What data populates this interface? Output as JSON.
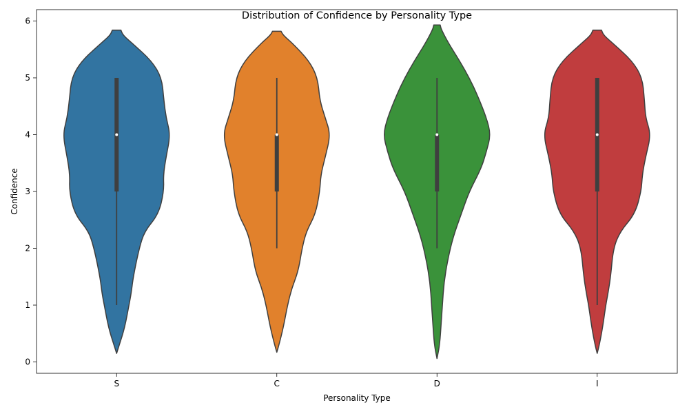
{
  "chart_data": {
    "type": "violin",
    "title": "Distribution of Confidence by Personality Type",
    "xlabel": "Personality Type",
    "ylabel": "Confidence",
    "ylim": [
      -0.2,
      6.2
    ],
    "yticks": [
      0,
      1,
      2,
      3,
      4,
      5,
      6
    ],
    "categories": [
      "S",
      "C",
      "D",
      "I"
    ],
    "colors": [
      "#3274a1",
      "#e1812c",
      "#3a923a",
      "#c03d3e"
    ],
    "grid": false,
    "series": [
      {
        "category": "S",
        "stats": {
          "min": 1,
          "q1": 3,
          "median": 4,
          "q3": 5,
          "max": 5
        },
        "density": [
          [
            0.15,
            0.0
          ],
          [
            0.3,
            0.05
          ],
          [
            0.6,
            0.15
          ],
          [
            1.0,
            0.23
          ],
          [
            1.2,
            0.27
          ],
          [
            1.5,
            0.31
          ],
          [
            2.0,
            0.42
          ],
          [
            2.3,
            0.52
          ],
          [
            2.6,
            0.78
          ],
          [
            3.0,
            0.88
          ],
          [
            3.3,
            0.87
          ],
          [
            3.6,
            0.92
          ],
          [
            4.0,
            1.0
          ],
          [
            4.3,
            0.92
          ],
          [
            4.6,
            0.88
          ],
          [
            5.0,
            0.84
          ],
          [
            5.3,
            0.65
          ],
          [
            5.6,
            0.3
          ],
          [
            5.75,
            0.12
          ],
          [
            5.84,
            0.08
          ]
        ]
      },
      {
        "category": "C",
        "stats": {
          "min": 2,
          "q1": 3,
          "median": 4,
          "q3": 4,
          "max": 5
        },
        "density": [
          [
            0.17,
            0.0
          ],
          [
            0.3,
            0.04
          ],
          [
            0.6,
            0.12
          ],
          [
            1.0,
            0.2
          ],
          [
            1.3,
            0.28
          ],
          [
            1.6,
            0.4
          ],
          [
            2.0,
            0.47
          ],
          [
            2.3,
            0.55
          ],
          [
            2.6,
            0.72
          ],
          [
            3.0,
            0.8
          ],
          [
            3.3,
            0.82
          ],
          [
            3.6,
            0.9
          ],
          [
            4.0,
            1.0
          ],
          [
            4.3,
            0.9
          ],
          [
            4.6,
            0.8
          ],
          [
            5.0,
            0.76
          ],
          [
            5.3,
            0.6
          ],
          [
            5.6,
            0.3
          ],
          [
            5.75,
            0.12
          ],
          [
            5.82,
            0.08
          ]
        ]
      },
      {
        "category": "D",
        "stats": {
          "min": 2,
          "q1": 3,
          "median": 4,
          "q3": 4,
          "max": 5
        },
        "density": [
          [
            0.06,
            0.0
          ],
          [
            0.3,
            0.05
          ],
          [
            0.7,
            0.08
          ],
          [
            1.0,
            0.1
          ],
          [
            1.4,
            0.13
          ],
          [
            1.8,
            0.2
          ],
          [
            2.2,
            0.3
          ],
          [
            2.6,
            0.45
          ],
          [
            3.0,
            0.6
          ],
          [
            3.4,
            0.82
          ],
          [
            3.7,
            0.92
          ],
          [
            4.0,
            1.0
          ],
          [
            4.3,
            0.92
          ],
          [
            4.7,
            0.75
          ],
          [
            5.0,
            0.6
          ],
          [
            5.3,
            0.42
          ],
          [
            5.6,
            0.22
          ],
          [
            5.85,
            0.08
          ],
          [
            5.93,
            0.06
          ]
        ]
      },
      {
        "category": "I",
        "stats": {
          "min": 1,
          "q1": 3,
          "median": 4,
          "q3": 5,
          "max": 5
        },
        "density": [
          [
            0.15,
            0.0
          ],
          [
            0.3,
            0.04
          ],
          [
            0.6,
            0.1
          ],
          [
            1.0,
            0.16
          ],
          [
            1.2,
            0.2
          ],
          [
            1.5,
            0.25
          ],
          [
            2.0,
            0.3
          ],
          [
            2.3,
            0.43
          ],
          [
            2.6,
            0.7
          ],
          [
            3.0,
            0.82
          ],
          [
            3.3,
            0.84
          ],
          [
            3.6,
            0.9
          ],
          [
            4.0,
            1.0
          ],
          [
            4.3,
            0.9
          ],
          [
            4.6,
            0.88
          ],
          [
            5.0,
            0.84
          ],
          [
            5.3,
            0.65
          ],
          [
            5.6,
            0.3
          ],
          [
            5.75,
            0.12
          ],
          [
            5.84,
            0.08
          ]
        ]
      }
    ]
  }
}
